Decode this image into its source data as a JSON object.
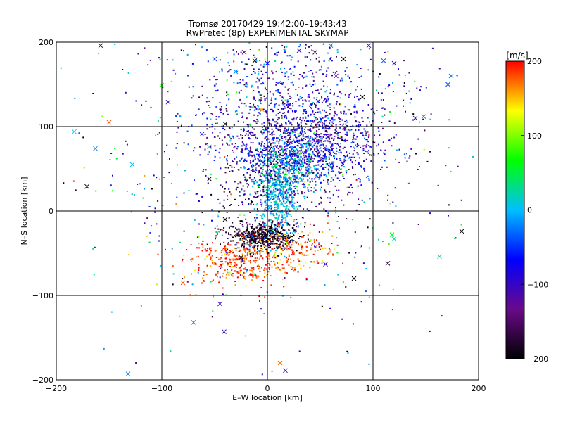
{
  "chart_data": {
    "type": "scatter",
    "title": "Tromsø 20170429 19:42:00–19:43:43",
    "subtitle": "RwPretec (8p) EXPERIMENTAL SKYMAP",
    "xlabel": "E–W location [km]",
    "ylabel": "N–S location [km]",
    "xlim": [
      -200,
      200
    ],
    "ylim": [
      -200,
      200
    ],
    "x_ticks": [
      -200,
      -100,
      0,
      100,
      200
    ],
    "y_ticks": [
      -200,
      -100,
      0,
      100,
      200
    ],
    "x_tick_labels": [
      "−200",
      "−100",
      "0",
      "100",
      "200"
    ],
    "y_tick_labels": [
      "−200",
      "−100",
      "0",
      "100",
      "200"
    ],
    "grid": true,
    "colorbar": {
      "label": "[m/s]",
      "range": [
        -200,
        200
      ],
      "ticks": [
        200,
        100,
        0,
        -100,
        -200
      ],
      "tick_labels": [
        "200",
        "100",
        "0",
        "−100",
        "−200"
      ],
      "colors": [
        "#000000",
        "#6a0a8a",
        "#0000ff",
        "#00bfff",
        "#00ff00",
        "#ffff00",
        "#ff0000"
      ]
    },
    "clusters": [
      {
        "x": 35,
        "y": 80,
        "sx": 38,
        "sy": 28,
        "n": 1400,
        "v_mean": -90,
        "v_sd": 40
      },
      {
        "x": 15,
        "y": 150,
        "sx": 55,
        "sy": 30,
        "n": 420,
        "v_mean": -70,
        "v_sd": 50
      },
      {
        "x": 10,
        "y": 15,
        "sx": 10,
        "sy": 22,
        "n": 450,
        "v_mean": 0,
        "v_sd": 25
      },
      {
        "x": 22,
        "y": 55,
        "sx": 20,
        "sy": 18,
        "n": 350,
        "v_mean": -10,
        "v_sd": 40
      },
      {
        "x": -5,
        "y": -30,
        "sx": 16,
        "sy": 8,
        "n": 500,
        "v_mean": -185,
        "v_sd": 20
      },
      {
        "x": -30,
        "y": -60,
        "sx": 22,
        "sy": 14,
        "n": 360,
        "v_mean": 185,
        "v_sd": 25
      },
      {
        "x": 25,
        "y": -45,
        "sx": 18,
        "sy": 15,
        "n": 160,
        "v_mean": 170,
        "v_sd": 30
      },
      {
        "x": -10,
        "y": 35,
        "sx": 25,
        "sy": 45,
        "n": 220,
        "v_mean": -150,
        "v_sd": 55
      },
      {
        "x": 0,
        "y": 40,
        "sx": 95,
        "sy": 90,
        "n": 500,
        "v_mean": -40,
        "v_sd": 110
      }
    ],
    "markers": [
      {
        "x": -158,
        "y": 196,
        "v": -170
      },
      {
        "x": -100,
        "y": 149,
        "v": 70
      },
      {
        "x": -94,
        "y": 129,
        "v": -100
      },
      {
        "x": -150,
        "y": 105,
        "v": 180
      },
      {
        "x": -183,
        "y": 94,
        "v": 0
      },
      {
        "x": -163,
        "y": 74,
        "v": -20
      },
      {
        "x": -128,
        "y": 55,
        "v": 0
      },
      {
        "x": -171,
        "y": 29,
        "v": -200
      },
      {
        "x": -40,
        "y": 103,
        "v": -200
      },
      {
        "x": -62,
        "y": 91,
        "v": -60
      },
      {
        "x": -55,
        "y": 76,
        "v": 20
      },
      {
        "x": -55,
        "y": 38,
        "v": -200
      },
      {
        "x": -40,
        "y": -10,
        "v": -200
      },
      {
        "x": -25,
        "y": -55,
        "v": -200
      },
      {
        "x": -80,
        "y": -85,
        "v": 180
      },
      {
        "x": -45,
        "y": -110,
        "v": -100
      },
      {
        "x": -70,
        "y": -132,
        "v": -20
      },
      {
        "x": -41,
        "y": -143,
        "v": -100
      },
      {
        "x": -132,
        "y": -193,
        "v": -20
      },
      {
        "x": 12,
        "y": -180,
        "v": 170
      },
      {
        "x": 17,
        "y": -189,
        "v": -100
      },
      {
        "x": 82,
        "y": -80,
        "v": -200
      },
      {
        "x": 114,
        "y": -62,
        "v": -180
      },
      {
        "x": 118,
        "y": -28,
        "v": 60
      },
      {
        "x": 120,
        "y": -33,
        "v": 20
      },
      {
        "x": 163,
        "y": -54,
        "v": 20
      },
      {
        "x": 184,
        "y": -24,
        "v": -200
      },
      {
        "x": 55,
        "y": -63,
        "v": -100
      },
      {
        "x": 73,
        "y": 99,
        "v": -60
      },
      {
        "x": 140,
        "y": 110,
        "v": -100
      },
      {
        "x": 148,
        "y": 112,
        "v": -20
      },
      {
        "x": 171,
        "y": 150,
        "v": -40
      },
      {
        "x": 174,
        "y": 160,
        "v": -20
      },
      {
        "x": 96,
        "y": 196,
        "v": -100
      },
      {
        "x": 60,
        "y": 196,
        "v": -20
      },
      {
        "x": -22,
        "y": 188,
        "v": -150
      },
      {
        "x": -12,
        "y": 178,
        "v": -200
      },
      {
        "x": 30,
        "y": 190,
        "v": -100
      },
      {
        "x": 45,
        "y": 188,
        "v": -150
      },
      {
        "x": 72,
        "y": 180,
        "v": -200
      },
      {
        "x": -50,
        "y": 180,
        "v": -40
      },
      {
        "x": -30,
        "y": 165,
        "v": -20
      },
      {
        "x": 0,
        "y": 175,
        "v": -60
      },
      {
        "x": 65,
        "y": 160,
        "v": -120
      },
      {
        "x": 110,
        "y": 178,
        "v": -40
      },
      {
        "x": -5,
        "y": 120,
        "v": 160
      },
      {
        "x": 48,
        "y": 130,
        "v": -100
      },
      {
        "x": 90,
        "y": 135,
        "v": -200
      },
      {
        "x": 120,
        "y": 175,
        "v": -100
      }
    ]
  }
}
